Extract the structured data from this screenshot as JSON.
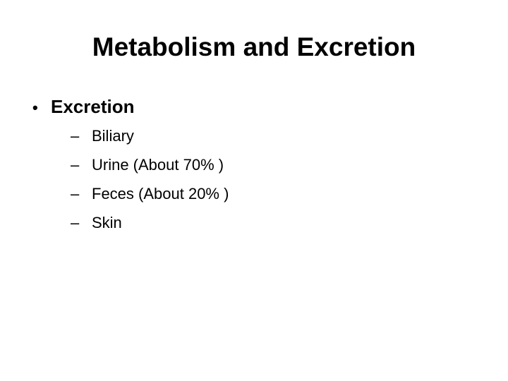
{
  "slide": {
    "title": "Metabolism and Excretion",
    "bullet": {
      "marker": "•",
      "text": "Excretion"
    },
    "sub_items": [
      {
        "marker": "–",
        "text": "Biliary"
      },
      {
        "marker": "–",
        "text": "Urine (About 70% )"
      },
      {
        "marker": "–",
        "text": "Feces (About 20% )"
      },
      {
        "marker": "–",
        "text": "Skin"
      }
    ]
  }
}
